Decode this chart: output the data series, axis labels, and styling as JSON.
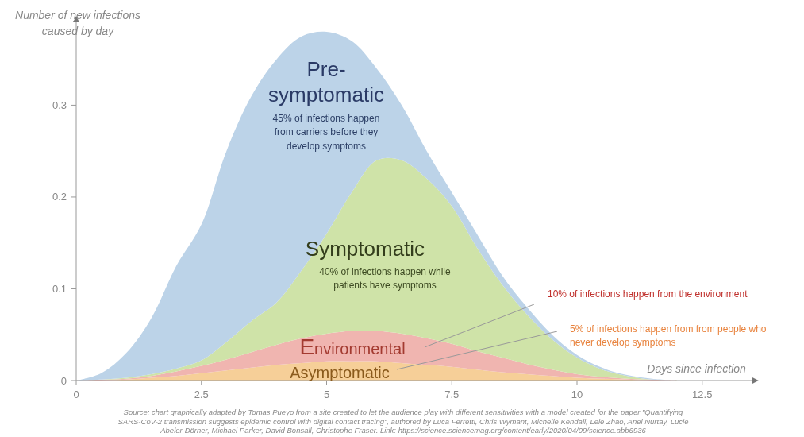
{
  "chart_data": {
    "type": "area",
    "stacked": true,
    "ylabel": "Number of new infections caused by day",
    "xlabel": "Days since infection",
    "x": [
      0,
      0.5,
      1,
      1.5,
      2,
      2.5,
      3,
      3.5,
      4,
      4.5,
      5,
      5.5,
      6,
      6.5,
      7,
      7.5,
      8,
      8.5,
      9,
      9.5,
      10,
      10.5,
      11,
      11.5,
      12
    ],
    "series": [
      {
        "name": "Asymptomatic",
        "color": "#f6cf98",
        "values": [
          0,
          0,
          0.001,
          0.003,
          0.005,
          0.008,
          0.011,
          0.014,
          0.017,
          0.019,
          0.021,
          0.021,
          0.021,
          0.019,
          0.017,
          0.015,
          0.012,
          0.009,
          0.007,
          0.005,
          0.003,
          0.002,
          0.001,
          0,
          0
        ]
      },
      {
        "name": "Environmental",
        "color": "#f0b5b0",
        "values": [
          0,
          0.001,
          0.001,
          0.002,
          0.005,
          0.008,
          0.012,
          0.017,
          0.022,
          0.027,
          0.03,
          0.033,
          0.033,
          0.032,
          0.029,
          0.025,
          0.02,
          0.016,
          0.011,
          0.007,
          0.004,
          0.002,
          0.001,
          0.001,
          0
        ]
      },
      {
        "name": "Symptomatic",
        "color": "#cfe3a8",
        "values": [
          0,
          0,
          0.001,
          0.002,
          0.003,
          0.006,
          0.019,
          0.034,
          0.046,
          0.074,
          0.109,
          0.151,
          0.186,
          0.189,
          0.174,
          0.15,
          0.113,
          0.08,
          0.054,
          0.033,
          0.018,
          0.008,
          0.003,
          0,
          0
        ]
      },
      {
        "name": "Pre-symptomatic",
        "color": "#bcd3e8",
        "values": [
          0,
          0.007,
          0.027,
          0.061,
          0.112,
          0.148,
          0.208,
          0.245,
          0.265,
          0.255,
          0.22,
          0.165,
          0.1,
          0.06,
          0.03,
          0.015,
          0.015,
          0.01,
          0.008,
          0.005,
          0.003,
          0.002,
          0.001,
          0.001,
          0
        ]
      }
    ],
    "xlim": [
      0,
      13.5
    ],
    "xticks": [
      0,
      2.5,
      5,
      7.5,
      10,
      12.5
    ],
    "ylim": [
      0,
      0.38
    ],
    "yticks": [
      0,
      0.1,
      0.2,
      0.3
    ],
    "annotations": [
      "45% of infections happen from carriers before they develop symptoms",
      "40% of infections happen while patients have symptoms",
      "10% of infections happen from the environment",
      "5% of infections happen from from people who never develop symptoms",
      "Source: chart graphically adapted by Tomas Pueyo from a site created to let the audience play with different sensitivities with a model created for the paper \"Quantifying SARS-CoV-2 transmission suggests epidemic control with digital contact tracing\", authored by Luca Ferretti, Chris Wymant, Michelle Kendall, Lele Zhao, Anel Nurtay, Lucie Abeler-Dörner, Michael Parker, David Bonsall, Christophe Fraser. Link: https://science.sciencemag.org/content/early/2020/04/09/science.abb6936"
    ]
  }
}
